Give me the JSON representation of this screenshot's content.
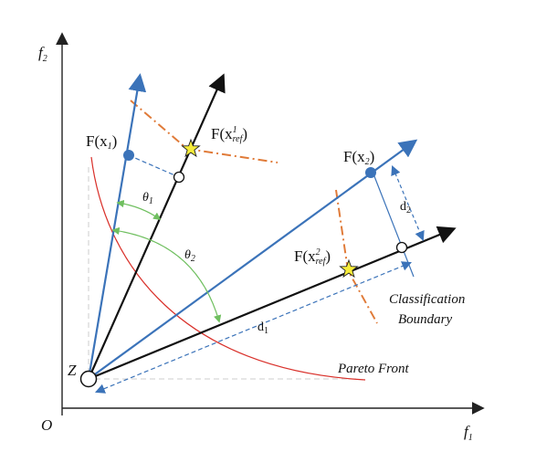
{
  "axes": {
    "origin_label": "O",
    "x_label": "f",
    "x_sub": "1",
    "y_label": "f",
    "y_sub": "2"
  },
  "points": {
    "z_label": "Z",
    "fx1_label": "F(x",
    "fx1_sub": "1",
    "fx1_close": ")",
    "fx2_label": "F(x",
    "fx2_sub": "2",
    "fx2_close": ")",
    "ref1_label": "F(x",
    "ref1_sup": "1",
    "ref1_sub": "ref",
    "ref1_close": ")",
    "ref2_label": "F(x",
    "ref2_sup": "2",
    "ref2_sub": "ref",
    "ref2_close": ")"
  },
  "angles": {
    "theta1": "θ",
    "theta1_sub": "1",
    "theta2": "θ",
    "theta2_sub": "2"
  },
  "distances": {
    "d1": "d",
    "d1_sub": "1",
    "d2": "d",
    "d2_sub": "2"
  },
  "annotations": {
    "classification_line1": "Classification",
    "classification_line2": "Boundary",
    "pareto_front": "Pareto Front"
  },
  "colors": {
    "axis": "#222222",
    "reference_vector": "#111111",
    "solution_vector": "#3b73b9",
    "pareto_front": "#d9312b",
    "boundary": "#e07b39",
    "angle_arc": "#6fbf5f",
    "guide": "#cccccc",
    "star_fill": "#f6ec3a"
  }
}
